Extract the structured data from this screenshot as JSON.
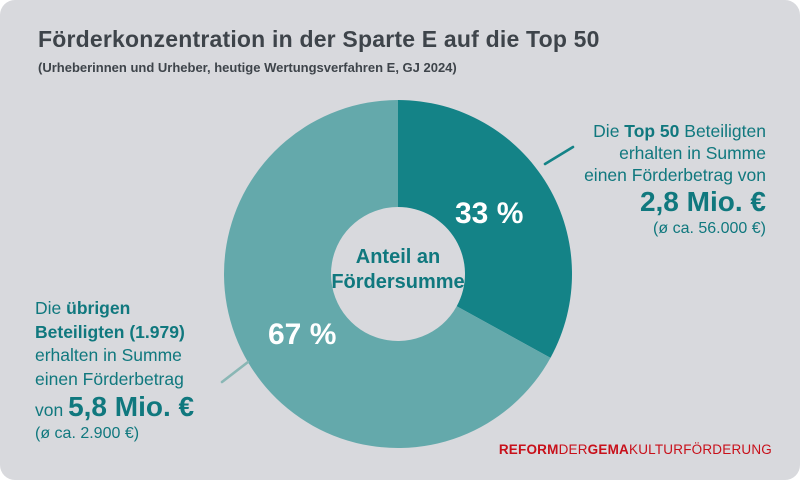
{
  "card": {
    "background": "#d8d9dd"
  },
  "header": {
    "title": "Förderkonzentration in der Sparte E auf die Top 50",
    "subtitle": "(Urheberinnen und Urheber, heutige Wertungsverfahren E, GJ 2024)"
  },
  "chart_data": {
    "type": "pie",
    "donut": true,
    "title": "Förderkonzentration in der Sparte E auf die Top 50",
    "subtitle": "(Urheberinnen und Urheber, heutige Wertungsverfahren E, GJ 2024)",
    "center_label_line1": "Anteil an",
    "center_label_line2": "Fördersumme",
    "start_angle_deg": 0,
    "direction": "clockwise",
    "slices": [
      {
        "label": "Top 50 Beteiligte",
        "value": 33,
        "display": "33 %",
        "color": "#148387"
      },
      {
        "label": "übrige Beteiligte (1.979)",
        "value": 67,
        "display": "67 %",
        "color": "#64a9ab"
      }
    ],
    "connector_right_color": "#148387",
    "connector_left_color": "#8ab7b5"
  },
  "annotations": {
    "right": {
      "line1_pre": "Die ",
      "line1_bold": "Top 50",
      "line1_post": " Beteiligten",
      "line2": "erhalten in Summe",
      "line3": "einen Förderbetrag von",
      "amount": "2,8 Mio. €",
      "avg": "(ø ca. 56.000 €)"
    },
    "left": {
      "line1_pre": "Die ",
      "line1_bold": "übrigen",
      "line2_bold": "Beteiligten (1.979)",
      "line3": "erhalten in Summe",
      "line4": "einen Förderbetrag",
      "amount_pre": "von ",
      "amount": "5,8 Mio. €",
      "avg": "(ø ca. 2.900 €)"
    }
  },
  "logo": {
    "part1_bold": "REFORM",
    "part2": "DER",
    "part3_bold": "GEMA",
    "part4": "KULTURFÖRDERUNG",
    "color": "#c8101a"
  }
}
